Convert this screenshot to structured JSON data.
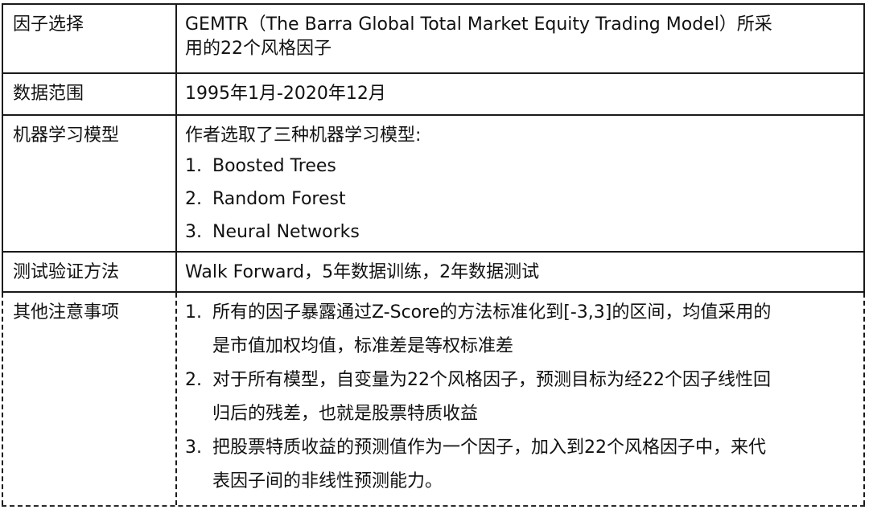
{
  "rows": {
    "factor": {
      "label": "因子选择",
      "content_line1": "GEMTR（The Barra Global Total Market Equity Trading Model）所采",
      "content_line2": "用的22个风格因子"
    },
    "data_range": {
      "label": "数据范围",
      "content": "1995年1月-2020年12月"
    },
    "ml_models": {
      "label": "机器学习模型",
      "intro": "作者选取了三种机器学习模型:",
      "items": [
        {
          "num": "1.",
          "text": "Boosted Trees"
        },
        {
          "num": "2.",
          "text": "Random Forest"
        },
        {
          "num": "3.",
          "text": "Neural Networks"
        }
      ]
    },
    "validation": {
      "label": "测试验证方法",
      "content": "Walk Forward，5年数据训练，2年数据测试"
    },
    "notes": {
      "label": "其他注意事项",
      "items": [
        {
          "num": "1.",
          "line1": "所有的因子暴露通过Z-Score的方法标准化到[-3,3]的区间，均值采用的",
          "line2": "是市值加权均值，标准差是等权标准差"
        },
        {
          "num": "2.",
          "line1": "对于所有模型，自变量为22个风格因子，预测目标为经22个因子线性回",
          "line2": "归后的残差，也就是股票特质收益"
        },
        {
          "num": "3.",
          "line1": "把股票特质收益的预测值作为一个因子，加入到22个风格因子中，来代",
          "line2": "表因子间的非线性预测能力。"
        }
      ]
    }
  }
}
